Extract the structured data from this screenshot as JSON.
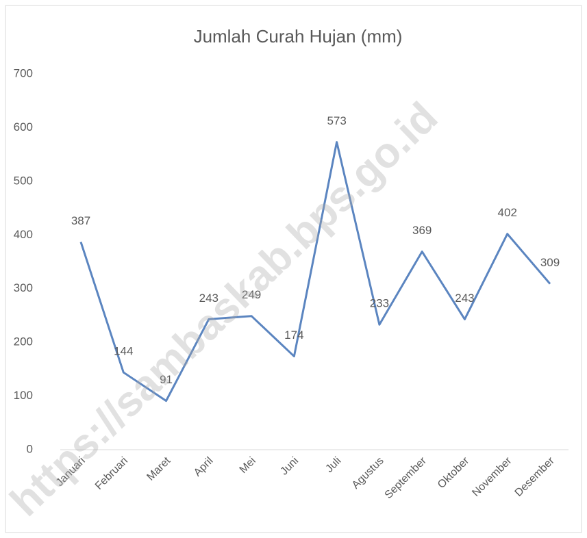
{
  "chart_data": {
    "type": "line",
    "title": "Jumlah Curah Hujan (mm)",
    "categories": [
      "Januari",
      "Februari",
      "Maret",
      "April",
      "Mei",
      "Juni",
      "Juli",
      "Agustus",
      "September",
      "Oktober",
      "November",
      "Desember"
    ],
    "series": [
      {
        "name": "Jumlah Curah Hujan (mm)",
        "color": "#5b85c0",
        "values": [
          387,
          144,
          91,
          243,
          249,
          174,
          573,
          233,
          369,
          243,
          402,
          309
        ]
      }
    ],
    "ylim": [
      0,
      700
    ],
    "yticks": [
      0,
      100,
      200,
      300,
      400,
      500,
      600,
      700
    ],
    "grid": false,
    "watermark": "https://sambaskab.bps.go.id"
  }
}
